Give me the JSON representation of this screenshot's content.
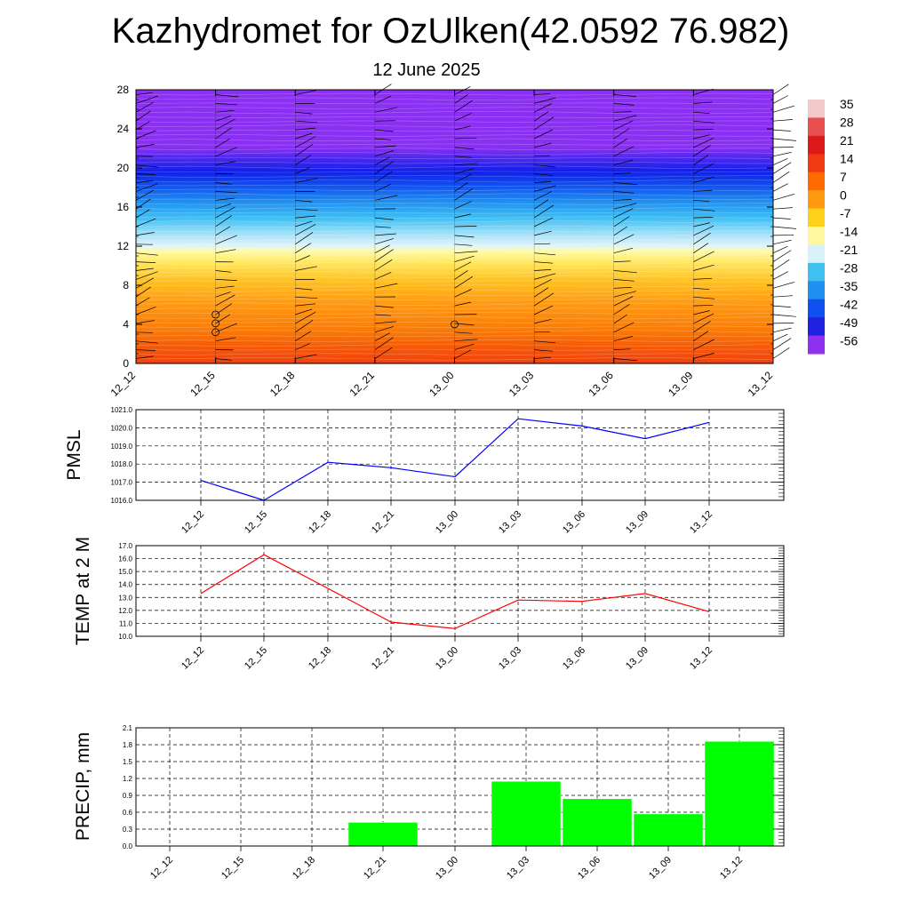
{
  "title": "Kazhydromet for OzUlken(42.0592 76.982)",
  "subtitle": "12 June 2025",
  "chart_data": [
    {
      "type": "heatmap",
      "name": "temperature-cross-section",
      "ylabel": "",
      "x_ticks": [
        "12_12",
        "12_15",
        "12_18",
        "12_21",
        "13_00",
        "13_03",
        "13_06",
        "13_09",
        "13_12"
      ],
      "y_ticks": [
        0,
        4,
        8,
        12,
        16,
        20,
        24,
        28
      ],
      "ylim": [
        0,
        28
      ],
      "colorbar_labels": [
        "35",
        "28",
        "21",
        "14",
        "7",
        "0",
        "-7",
        "-14",
        "-21",
        "-28",
        "-35",
        "-42",
        "-49",
        "-56"
      ],
      "colorbar_colors": [
        "#f2c8c8",
        "#e85050",
        "#dd1a1a",
        "#f03a14",
        "#ff6a00",
        "#ff9a10",
        "#ffd21a",
        "#fff8a0",
        "#d8f0f8",
        "#40c0f0",
        "#2090f0",
        "#1050f0",
        "#2020e0",
        "#9030f0"
      ],
      "wind_barbs": true
    },
    {
      "type": "line",
      "ylabel": "PMSL",
      "categories": [
        "12_12",
        "12_15",
        "12_18",
        "12_21",
        "13_00",
        "13_03",
        "13_06",
        "13_09",
        "13_12"
      ],
      "values": [
        1017.1,
        1016.0,
        1018.1,
        1017.8,
        1017.3,
        1020.5,
        1020.1,
        1019.4,
        1020.3
      ],
      "ylim": [
        1016.0,
        1021.0
      ],
      "y_ticks": [
        "1016.0",
        "1017.0",
        "1018.0",
        "1019.0",
        "1020.0",
        "1021.0"
      ],
      "color": "#0000ff"
    },
    {
      "type": "line",
      "ylabel": "TEMP at 2 M",
      "categories": [
        "12_12",
        "12_15",
        "12_18",
        "12_21",
        "13_00",
        "13_03",
        "13_06",
        "13_09",
        "13_12"
      ],
      "values": [
        13.3,
        16.3,
        13.7,
        11.1,
        10.6,
        12.8,
        12.7,
        13.3,
        11.9
      ],
      "ylim": [
        10.0,
        17.0
      ],
      "y_ticks": [
        "10.0",
        "11.0",
        "12.0",
        "13.0",
        "14.0",
        "15.0",
        "16.0",
        "17.0"
      ],
      "color": "#ff0000"
    },
    {
      "type": "bar",
      "ylabel": "PRECIP, mm",
      "categories": [
        "12_12",
        "12_15",
        "12_18",
        "12_21",
        "13_00",
        "13_03",
        "13_06",
        "13_09",
        "13_12"
      ],
      "values": [
        0,
        0,
        0,
        0.42,
        0,
        1.15,
        0.84,
        0.57,
        1.86
      ],
      "ylim": [
        0.0,
        2.1
      ],
      "y_ticks": [
        "0.0",
        "0.3",
        "0.6",
        "0.9",
        "1.2",
        "1.5",
        "1.8",
        "2.1"
      ],
      "color": "#00ff00"
    }
  ]
}
